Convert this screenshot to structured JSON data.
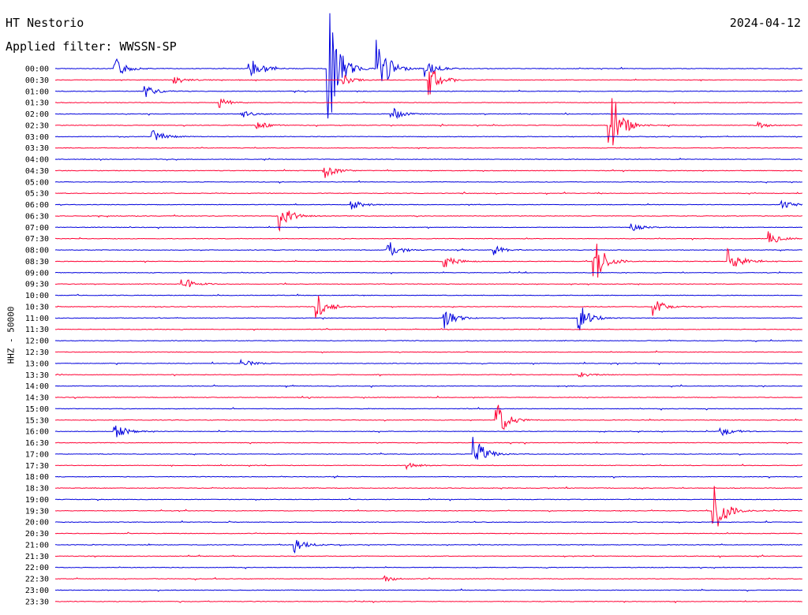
{
  "header": {
    "station": "HT Nestorio",
    "date": "2024-04-12",
    "filter": "Applied filter: WWSSN-SP",
    "channel": "HHZ - 50000"
  },
  "colors": {
    "blue": "#0000dd",
    "red": "#ff0033"
  },
  "chart_data": {
    "type": "line",
    "title": "HT Nestorio",
    "xlabel": "",
    "ylabel": "HHZ - 50000",
    "line_colors": [
      "blue",
      "red"
    ],
    "rows": [
      "00:00",
      "00:30",
      "01:00",
      "01:30",
      "02:00",
      "02:30",
      "03:00",
      "03:30",
      "04:00",
      "04:30",
      "05:00",
      "05:30",
      "06:00",
      "06:30",
      "07:00",
      "07:30",
      "08:00",
      "08:30",
      "09:00",
      "09:30",
      "10:00",
      "10:30",
      "11:00",
      "11:30",
      "12:00",
      "12:30",
      "13:00",
      "13:30",
      "14:00",
      "14:30",
      "15:00",
      "15:30",
      "16:00",
      "16:30",
      "17:00",
      "17:30",
      "18:00",
      "18:30",
      "19:00",
      "19:30",
      "20:00",
      "20:30",
      "21:00",
      "21:30",
      "22:00",
      "22:30",
      "23:00",
      "23:30"
    ],
    "events": [
      {
        "row": 0,
        "t": 0.08,
        "amp": 1.0
      },
      {
        "row": 0,
        "t": 0.26,
        "amp": 1.2
      },
      {
        "row": 0,
        "t": 0.365,
        "amp": 6.0
      },
      {
        "row": 0,
        "t": 0.43,
        "amp": 3.5
      },
      {
        "row": 0,
        "t": 0.495,
        "amp": 0.8
      },
      {
        "row": 1,
        "t": 0.5,
        "amp": 1.5
      },
      {
        "row": 1,
        "t": 0.16,
        "amp": 0.4
      },
      {
        "row": 1,
        "t": 0.385,
        "amp": 0.5
      },
      {
        "row": 2,
        "t": 0.12,
        "amp": 0.6
      },
      {
        "row": 3,
        "t": 0.22,
        "amp": 0.5
      },
      {
        "row": 4,
        "t": 0.25,
        "amp": 0.4
      },
      {
        "row": 4,
        "t": 0.45,
        "amp": 0.6
      },
      {
        "row": 5,
        "t": 0.74,
        "amp": 4.5
      },
      {
        "row": 5,
        "t": 0.27,
        "amp": 0.4
      },
      {
        "row": 5,
        "t": 0.94,
        "amp": 0.3
      },
      {
        "row": 6,
        "t": 0.13,
        "amp": 0.8
      },
      {
        "row": 9,
        "t": 0.36,
        "amp": 0.8
      },
      {
        "row": 12,
        "t": 0.395,
        "amp": 0.5
      },
      {
        "row": 12,
        "t": 0.97,
        "amp": 0.6
      },
      {
        "row": 13,
        "t": 0.3,
        "amp": 1.4
      },
      {
        "row": 14,
        "t": 0.77,
        "amp": 0.4
      },
      {
        "row": 15,
        "t": 0.955,
        "amp": 0.7
      },
      {
        "row": 16,
        "t": 0.445,
        "amp": 0.9
      },
      {
        "row": 16,
        "t": 0.585,
        "amp": 0.5
      },
      {
        "row": 17,
        "t": 0.52,
        "amp": 0.7
      },
      {
        "row": 17,
        "t": 0.72,
        "amp": 2.6
      },
      {
        "row": 17,
        "t": 0.9,
        "amp": 1.2
      },
      {
        "row": 19,
        "t": 0.17,
        "amp": 0.8
      },
      {
        "row": 21,
        "t": 0.35,
        "amp": 1.2
      },
      {
        "row": 21,
        "t": 0.8,
        "amp": 0.8
      },
      {
        "row": 22,
        "t": 0.52,
        "amp": 1.0
      },
      {
        "row": 22,
        "t": 0.7,
        "amp": 1.4
      },
      {
        "row": 26,
        "t": 0.25,
        "amp": 0.4
      },
      {
        "row": 27,
        "t": 0.7,
        "amp": 0.3
      },
      {
        "row": 31,
        "t": 0.59,
        "amp": 1.7
      },
      {
        "row": 32,
        "t": 0.08,
        "amp": 0.8
      },
      {
        "row": 32,
        "t": 0.89,
        "amp": 0.5
      },
      {
        "row": 34,
        "t": 0.56,
        "amp": 1.7
      },
      {
        "row": 35,
        "t": 0.47,
        "amp": 0.3
      },
      {
        "row": 39,
        "t": 0.88,
        "amp": 3.0
      },
      {
        "row": 42,
        "t": 0.32,
        "amp": 0.7
      },
      {
        "row": 45,
        "t": 0.44,
        "amp": 0.3
      }
    ],
    "grid": false,
    "legend": "none"
  }
}
